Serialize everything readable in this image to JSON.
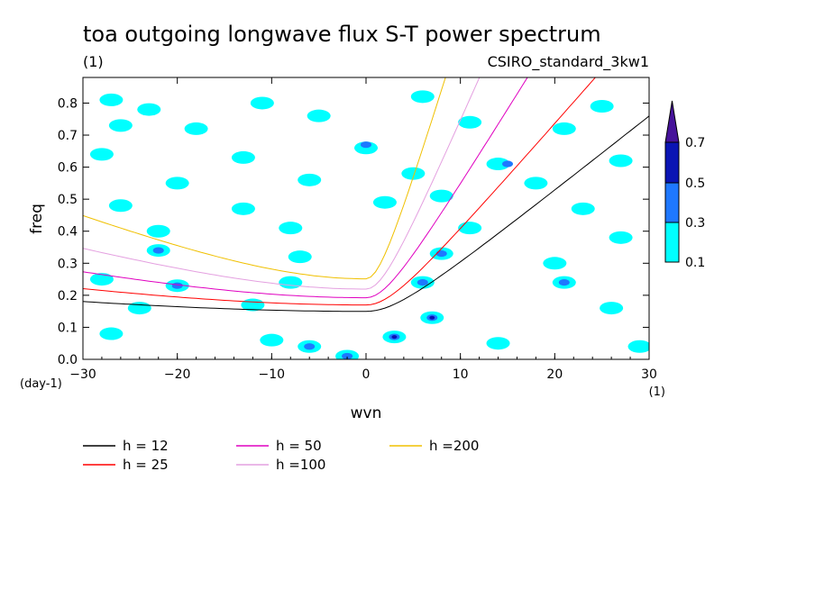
{
  "chart_data": {
    "type": "heatmap",
    "title": "toa outgoing longwave flux S-T power spectrum",
    "subtitle_left": "(1)",
    "subtitle_right": "CSIRO_standard_3kw1",
    "xlabel": "wvn",
    "xunit": "(1)",
    "ylabel": "freq",
    "yunit": "(day-1)",
    "xlim": [
      -30,
      30
    ],
    "ylim": [
      0,
      0.88
    ],
    "xticks": [
      -30,
      -20,
      -10,
      0,
      10,
      20,
      30
    ],
    "xtick_labels": [
      "−30",
      "−20",
      "−10",
      "0",
      "10",
      "20",
      "30"
    ],
    "yticks": [
      0.0,
      0.1,
      0.2,
      0.3,
      0.4,
      0.5,
      0.6,
      0.7,
      0.8
    ],
    "ytick_labels": [
      "0.0",
      "0.1",
      "0.2",
      "0.3",
      "0.4",
      "0.5",
      "0.6",
      "0.7",
      "0.8"
    ],
    "colorbar": {
      "levels": [
        "0.1",
        "0.3",
        "0.5",
        "0.7"
      ],
      "colors": [
        "#00ffff",
        "#1e78ff",
        "#0a14b4",
        "#46129a"
      ]
    },
    "contour_patches": [
      {
        "x": -27,
        "y": 0.81,
        "level": 0
      },
      {
        "x": -23,
        "y": 0.78,
        "level": 0
      },
      {
        "x": -11,
        "y": 0.8,
        "level": 0
      },
      {
        "x": 6,
        "y": 0.82,
        "level": 0
      },
      {
        "x": 25,
        "y": 0.79,
        "level": 0
      },
      {
        "x": -26,
        "y": 0.73,
        "level": 0
      },
      {
        "x": -18,
        "y": 0.72,
        "level": 0
      },
      {
        "x": -5,
        "y": 0.76,
        "level": 0
      },
      {
        "x": 11,
        "y": 0.74,
        "level": 0
      },
      {
        "x": 21,
        "y": 0.72,
        "level": 0
      },
      {
        "x": -28,
        "y": 0.64,
        "level": 0
      },
      {
        "x": -13,
        "y": 0.63,
        "level": 0
      },
      {
        "x": 0,
        "y": 0.66,
        "level": 0
      },
      {
        "x": 0,
        "y": 0.67,
        "level": 1
      },
      {
        "x": 14,
        "y": 0.61,
        "level": 0
      },
      {
        "x": 15,
        "y": 0.61,
        "level": 1
      },
      {
        "x": 27,
        "y": 0.62,
        "level": 0
      },
      {
        "x": -20,
        "y": 0.55,
        "level": 0
      },
      {
        "x": -6,
        "y": 0.56,
        "level": 0
      },
      {
        "x": 5,
        "y": 0.58,
        "level": 0
      },
      {
        "x": 18,
        "y": 0.55,
        "level": 0
      },
      {
        "x": -26,
        "y": 0.48,
        "level": 0
      },
      {
        "x": -13,
        "y": 0.47,
        "level": 0
      },
      {
        "x": 2,
        "y": 0.49,
        "level": 0
      },
      {
        "x": 8,
        "y": 0.51,
        "level": 0
      },
      {
        "x": 23,
        "y": 0.47,
        "level": 0
      },
      {
        "x": -22,
        "y": 0.4,
        "level": 0
      },
      {
        "x": -8,
        "y": 0.41,
        "level": 0
      },
      {
        "x": 11,
        "y": 0.41,
        "level": 0
      },
      {
        "x": 27,
        "y": 0.38,
        "level": 0
      },
      {
        "x": -22,
        "y": 0.34,
        "level": 0
      },
      {
        "x": -22,
        "y": 0.34,
        "level": 1
      },
      {
        "x": -7,
        "y": 0.32,
        "level": 0
      },
      {
        "x": 8,
        "y": 0.33,
        "level": 0
      },
      {
        "x": 8,
        "y": 0.33,
        "level": 1
      },
      {
        "x": 20,
        "y": 0.3,
        "level": 0
      },
      {
        "x": -28,
        "y": 0.25,
        "level": 0
      },
      {
        "x": -20,
        "y": 0.23,
        "level": 0
      },
      {
        "x": -20,
        "y": 0.23,
        "level": 1
      },
      {
        "x": -8,
        "y": 0.24,
        "level": 0
      },
      {
        "x": 6,
        "y": 0.24,
        "level": 0
      },
      {
        "x": 6,
        "y": 0.24,
        "level": 1
      },
      {
        "x": 21,
        "y": 0.24,
        "level": 0
      },
      {
        "x": 21,
        "y": 0.24,
        "level": 1
      },
      {
        "x": -24,
        "y": 0.16,
        "level": 0
      },
      {
        "x": -12,
        "y": 0.17,
        "level": 0
      },
      {
        "x": 7,
        "y": 0.13,
        "level": 0
      },
      {
        "x": 7,
        "y": 0.13,
        "level": 1
      },
      {
        "x": 7,
        "y": 0.13,
        "level": 2
      },
      {
        "x": 26,
        "y": 0.16,
        "level": 0
      },
      {
        "x": -27,
        "y": 0.08,
        "level": 0
      },
      {
        "x": -10,
        "y": 0.06,
        "level": 0
      },
      {
        "x": -6,
        "y": 0.04,
        "level": 0
      },
      {
        "x": -6,
        "y": 0.04,
        "level": 1
      },
      {
        "x": 3,
        "y": 0.07,
        "level": 0
      },
      {
        "x": 3,
        "y": 0.07,
        "level": 1
      },
      {
        "x": 3,
        "y": 0.07,
        "level": 2
      },
      {
        "x": 14,
        "y": 0.05,
        "level": 0
      },
      {
        "x": 29,
        "y": 0.04,
        "level": 0
      },
      {
        "x": -2,
        "y": 0.01,
        "level": 0
      },
      {
        "x": -2,
        "y": 0.01,
        "level": 1
      }
    ],
    "series": [
      {
        "name": "h = 12",
        "h": 12,
        "color": "#000000"
      },
      {
        "name": "h = 25",
        "h": 25,
        "color": "#ff0000"
      },
      {
        "name": "h = 50",
        "h": 50,
        "color": "#e000c0"
      },
      {
        "name": "h =100",
        "h": 100,
        "color": "#e4a0e0"
      },
      {
        "name": "h =200",
        "h": 200,
        "color": "#f0c000"
      }
    ],
    "legend_position": "bottom"
  }
}
